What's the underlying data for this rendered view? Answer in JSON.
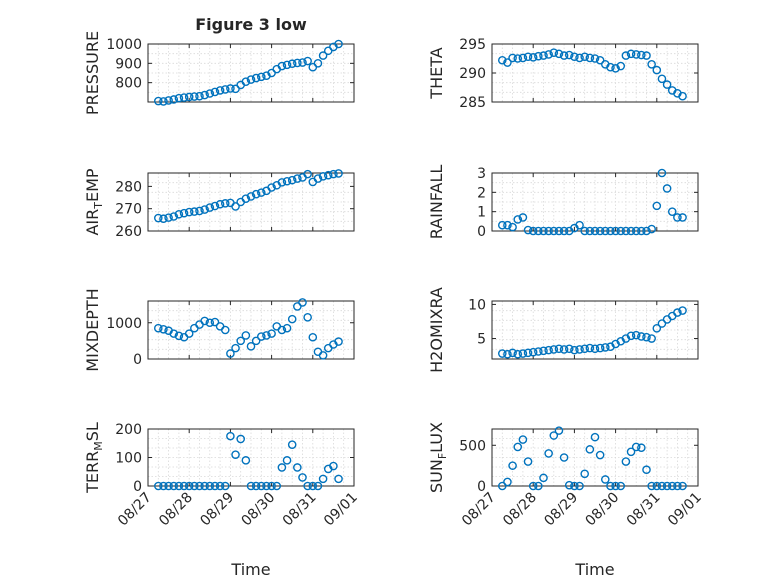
{
  "figure": {
    "title": "Figure 3 low",
    "xlabel": "Time",
    "date_ticks": [
      "08/27",
      "08/28",
      "08/29",
      "08/30",
      "08/31",
      "09/01"
    ],
    "marker": "circle",
    "color": "#0072bd",
    "grid": "minor dotted"
  },
  "chart_data": [
    {
      "type": "scatter",
      "name": "pressure",
      "ylabel": "PRESSURE",
      "ylim": [
        700,
        1000
      ],
      "yticks": [
        800,
        900,
        1000
      ],
      "points": [
        [
          "08/27 06:00",
          705
        ],
        [
          "08/27 09:00",
          703
        ],
        [
          "08/27 12:00",
          708
        ],
        [
          "08/27 15:00",
          713
        ],
        [
          "08/27 18:00",
          720
        ],
        [
          "08/27 21:00",
          723
        ],
        [
          "08/28 00:00",
          726
        ],
        [
          "08/28 03:00",
          728
        ],
        [
          "08/28 06:00",
          730
        ],
        [
          "08/28 09:00",
          736
        ],
        [
          "08/28 12:00",
          744
        ],
        [
          "08/28 15:00",
          752
        ],
        [
          "08/28 18:00",
          760
        ],
        [
          "08/28 21:00",
          765
        ],
        [
          "08/29 00:00",
          770
        ],
        [
          "08/29 03:00",
          768
        ],
        [
          "08/29 06:00",
          788
        ],
        [
          "08/29 09:00",
          805
        ],
        [
          "08/29 12:00",
          816
        ],
        [
          "08/29 15:00",
          824
        ],
        [
          "08/29 18:00",
          830
        ],
        [
          "08/29 21:00",
          836
        ],
        [
          "08/30 00:00",
          850
        ],
        [
          "08/30 03:00",
          870
        ],
        [
          "08/30 06:00",
          886
        ],
        [
          "08/30 09:00",
          892
        ],
        [
          "08/30 12:00",
          898
        ],
        [
          "08/30 15:00",
          902
        ],
        [
          "08/30 18:00",
          904
        ],
        [
          "08/30 21:00",
          912
        ],
        [
          "08/31 00:00",
          880
        ],
        [
          "08/31 03:00",
          900
        ],
        [
          "08/31 06:00",
          940
        ],
        [
          "08/31 09:00",
          965
        ],
        [
          "08/31 12:00",
          985
        ],
        [
          "08/31 15:00",
          1000
        ]
      ]
    },
    {
      "type": "scatter",
      "name": "theta",
      "ylabel": "THETA",
      "ylim": [
        285,
        295
      ],
      "yticks": [
        285,
        290,
        295
      ],
      "points": [
        [
          "08/27 06:00",
          292.2
        ],
        [
          "08/27 09:00",
          291.8
        ],
        [
          "08/27 12:00",
          292.6
        ],
        [
          "08/27 15:00",
          292.5
        ],
        [
          "08/27 18:00",
          292.6
        ],
        [
          "08/27 21:00",
          292.8
        ],
        [
          "08/28 00:00",
          292.7
        ],
        [
          "08/28 03:00",
          292.9
        ],
        [
          "08/28 06:00",
          293.0
        ],
        [
          "08/28 09:00",
          293.2
        ],
        [
          "08/28 12:00",
          293.5
        ],
        [
          "08/28 15:00",
          293.3
        ],
        [
          "08/28 18:00",
          293.0
        ],
        [
          "08/28 21:00",
          293.1
        ],
        [
          "08/29 00:00",
          292.8
        ],
        [
          "08/29 03:00",
          292.6
        ],
        [
          "08/29 06:00",
          292.8
        ],
        [
          "08/29 09:00",
          292.6
        ],
        [
          "08/29 12:00",
          292.5
        ],
        [
          "08/29 15:00",
          292.2
        ],
        [
          "08/29 18:00",
          291.5
        ],
        [
          "08/29 21:00",
          291.0
        ],
        [
          "08/30 00:00",
          290.8
        ],
        [
          "08/30 03:00",
          291.2
        ],
        [
          "08/30 06:00",
          293.0
        ],
        [
          "08/30 09:00",
          293.3
        ],
        [
          "08/30 12:00",
          293.2
        ],
        [
          "08/30 15:00",
          293.1
        ],
        [
          "08/30 18:00",
          293.0
        ],
        [
          "08/30 21:00",
          291.5
        ],
        [
          "08/31 00:00",
          290.5
        ],
        [
          "08/31 03:00",
          289.0
        ],
        [
          "08/31 06:00",
          288.0
        ],
        [
          "08/31 09:00",
          287.0
        ],
        [
          "08/31 12:00",
          286.5
        ],
        [
          "08/31 15:00",
          286.0
        ]
      ]
    },
    {
      "type": "scatter",
      "name": "air-temp",
      "ylabel": "AIR_TEMP",
      "ylim": [
        260,
        286
      ],
      "yticks": [
        260,
        270,
        280
      ],
      "points": [
        [
          "08/27 06:00",
          265.8
        ],
        [
          "08/27 09:00",
          265.5
        ],
        [
          "08/27 12:00",
          266.0
        ],
        [
          "08/27 15:00",
          266.5
        ],
        [
          "08/27 18:00",
          267.5
        ],
        [
          "08/27 21:00",
          268.0
        ],
        [
          "08/28 00:00",
          268.5
        ],
        [
          "08/28 03:00",
          268.7
        ],
        [
          "08/28 06:00",
          269.0
        ],
        [
          "08/28 09:00",
          269.6
        ],
        [
          "08/28 12:00",
          270.5
        ],
        [
          "08/28 15:00",
          271.2
        ],
        [
          "08/28 18:00",
          272.0
        ],
        [
          "08/28 21:00",
          272.4
        ],
        [
          "08/29 00:00",
          272.6
        ],
        [
          "08/29 03:00",
          271.0
        ],
        [
          "08/29 06:00",
          273.0
        ],
        [
          "08/29 09:00",
          274.5
        ],
        [
          "08/29 12:00",
          275.5
        ],
        [
          "08/29 15:00",
          276.5
        ],
        [
          "08/29 18:00",
          277.2
        ],
        [
          "08/29 21:00",
          278.0
        ],
        [
          "08/30 00:00",
          279.5
        ],
        [
          "08/30 03:00",
          280.5
        ],
        [
          "08/30 06:00",
          281.8
        ],
        [
          "08/30 09:00",
          282.3
        ],
        [
          "08/30 12:00",
          282.8
        ],
        [
          "08/30 15:00",
          283.5
        ],
        [
          "08/30 18:00",
          284.0
        ],
        [
          "08/30 21:00",
          285.5
        ],
        [
          "08/31 00:00",
          282.0
        ],
        [
          "08/31 03:00",
          283.5
        ],
        [
          "08/31 06:00",
          284.5
        ],
        [
          "08/31 09:00",
          285.0
        ],
        [
          "08/31 12:00",
          285.5
        ],
        [
          "08/31 15:00",
          285.8
        ]
      ]
    },
    {
      "type": "scatter",
      "name": "rainfall",
      "ylabel": "RAINFALL",
      "ylim": [
        0,
        3
      ],
      "yticks": [
        0,
        1,
        2,
        3
      ],
      "points": [
        [
          "08/27 06:00",
          0.3
        ],
        [
          "08/27 09:00",
          0.3
        ],
        [
          "08/27 12:00",
          0.2
        ],
        [
          "08/27 15:00",
          0.6
        ],
        [
          "08/27 18:00",
          0.7
        ],
        [
          "08/27 21:00",
          0.05
        ],
        [
          "08/28 00:00",
          0
        ],
        [
          "08/28 03:00",
          0
        ],
        [
          "08/28 06:00",
          0
        ],
        [
          "08/28 09:00",
          0
        ],
        [
          "08/28 12:00",
          0
        ],
        [
          "08/28 15:00",
          0
        ],
        [
          "08/28 18:00",
          0
        ],
        [
          "08/28 21:00",
          0
        ],
        [
          "08/29 00:00",
          0.15
        ],
        [
          "08/29 03:00",
          0.3
        ],
        [
          "08/29 06:00",
          0
        ],
        [
          "08/29 09:00",
          0
        ],
        [
          "08/29 12:00",
          0
        ],
        [
          "08/29 15:00",
          0
        ],
        [
          "08/29 18:00",
          0
        ],
        [
          "08/29 21:00",
          0
        ],
        [
          "08/30 00:00",
          0
        ],
        [
          "08/30 03:00",
          0
        ],
        [
          "08/30 06:00",
          0
        ],
        [
          "08/30 09:00",
          0
        ],
        [
          "08/30 12:00",
          0
        ],
        [
          "08/30 15:00",
          0
        ],
        [
          "08/30 18:00",
          0
        ],
        [
          "08/30 21:00",
          0.1
        ],
        [
          "08/31 00:00",
          1.3
        ],
        [
          "08/31 03:00",
          3.0
        ],
        [
          "08/31 06:00",
          2.2
        ],
        [
          "08/31 09:00",
          1.0
        ],
        [
          "08/31 12:00",
          0.7
        ],
        [
          "08/31 15:00",
          0.7
        ]
      ]
    },
    {
      "type": "scatter",
      "name": "mixdepth",
      "ylabel": "MIXDEPTH",
      "ylim": [
        0,
        1600
      ],
      "yticks": [
        0,
        1000
      ],
      "points": [
        [
          "08/27 06:00",
          850
        ],
        [
          "08/27 09:00",
          820
        ],
        [
          "08/27 12:00",
          780
        ],
        [
          "08/27 15:00",
          700
        ],
        [
          "08/27 18:00",
          640
        ],
        [
          "08/27 21:00",
          600
        ],
        [
          "08/28 00:00",
          700
        ],
        [
          "08/28 03:00",
          850
        ],
        [
          "08/28 06:00",
          950
        ],
        [
          "08/28 09:00",
          1050
        ],
        [
          "08/28 12:00",
          1000
        ],
        [
          "08/28 15:00",
          1020
        ],
        [
          "08/28 18:00",
          900
        ],
        [
          "08/28 21:00",
          800
        ],
        [
          "08/29 00:00",
          150
        ],
        [
          "08/29 03:00",
          300
        ],
        [
          "08/29 06:00",
          500
        ],
        [
          "08/29 09:00",
          650
        ],
        [
          "08/29 12:00",
          350
        ],
        [
          "08/29 15:00",
          500
        ],
        [
          "08/29 18:00",
          620
        ],
        [
          "08/29 21:00",
          650
        ],
        [
          "08/30 00:00",
          700
        ],
        [
          "08/30 03:00",
          900
        ],
        [
          "08/30 06:00",
          800
        ],
        [
          "08/30 09:00",
          850
        ],
        [
          "08/30 12:00",
          1100
        ],
        [
          "08/30 15:00",
          1450
        ],
        [
          "08/30 18:00",
          1560
        ],
        [
          "08/30 21:00",
          1150
        ],
        [
          "08/31 00:00",
          600
        ],
        [
          "08/31 03:00",
          200
        ],
        [
          "08/31 06:00",
          100
        ],
        [
          "08/31 09:00",
          300
        ],
        [
          "08/31 12:00",
          400
        ],
        [
          "08/31 15:00",
          480
        ]
      ]
    },
    {
      "type": "scatter",
      "name": "h2omixra",
      "ylabel": "H2OMIXRA",
      "ylim": [
        2,
        10.5
      ],
      "yticks": [
        5,
        10
      ],
      "points": [
        [
          "08/27 06:00",
          2.8
        ],
        [
          "08/27 09:00",
          2.7
        ],
        [
          "08/27 12:00",
          2.9
        ],
        [
          "08/27 15:00",
          2.7
        ],
        [
          "08/27 18:00",
          2.8
        ],
        [
          "08/27 21:00",
          2.9
        ],
        [
          "08/28 00:00",
          3.0
        ],
        [
          "08/28 03:00",
          3.1
        ],
        [
          "08/28 06:00",
          3.2
        ],
        [
          "08/28 09:00",
          3.3
        ],
        [
          "08/28 12:00",
          3.4
        ],
        [
          "08/28 15:00",
          3.5
        ],
        [
          "08/28 18:00",
          3.4
        ],
        [
          "08/28 21:00",
          3.5
        ],
        [
          "08/29 00:00",
          3.3
        ],
        [
          "08/29 03:00",
          3.4
        ],
        [
          "08/29 06:00",
          3.5
        ],
        [
          "08/29 09:00",
          3.6
        ],
        [
          "08/29 12:00",
          3.5
        ],
        [
          "08/29 15:00",
          3.6
        ],
        [
          "08/29 18:00",
          3.7
        ],
        [
          "08/29 21:00",
          3.8
        ],
        [
          "08/30 00:00",
          4.2
        ],
        [
          "08/30 03:00",
          4.6
        ],
        [
          "08/30 06:00",
          5.0
        ],
        [
          "08/30 09:00",
          5.4
        ],
        [
          "08/30 12:00",
          5.5
        ],
        [
          "08/30 15:00",
          5.3
        ],
        [
          "08/30 18:00",
          5.2
        ],
        [
          "08/30 21:00",
          5.0
        ],
        [
          "08/31 00:00",
          6.5
        ],
        [
          "08/31 03:00",
          7.2
        ],
        [
          "08/31 06:00",
          7.8
        ],
        [
          "08/31 09:00",
          8.3
        ],
        [
          "08/31 12:00",
          8.8
        ],
        [
          "08/31 15:00",
          9.1
        ]
      ]
    },
    {
      "type": "scatter",
      "name": "terr-msl",
      "ylabel": "TERR_MSL",
      "ylim": [
        0,
        200
      ],
      "yticks": [
        0,
        100,
        200
      ],
      "points": [
        [
          "08/27 06:00",
          0
        ],
        [
          "08/27 09:00",
          0
        ],
        [
          "08/27 12:00",
          0
        ],
        [
          "08/27 15:00",
          0
        ],
        [
          "08/27 18:00",
          0
        ],
        [
          "08/27 21:00",
          0
        ],
        [
          "08/28 00:00",
          0
        ],
        [
          "08/28 03:00",
          0
        ],
        [
          "08/28 06:00",
          0
        ],
        [
          "08/28 09:00",
          0
        ],
        [
          "08/28 12:00",
          0
        ],
        [
          "08/28 15:00",
          0
        ],
        [
          "08/28 18:00",
          0
        ],
        [
          "08/28 21:00",
          0
        ],
        [
          "08/29 00:00",
          175
        ],
        [
          "08/29 03:00",
          110
        ],
        [
          "08/29 06:00",
          165
        ],
        [
          "08/29 09:00",
          90
        ],
        [
          "08/29 12:00",
          0
        ],
        [
          "08/29 15:00",
          0
        ],
        [
          "08/29 18:00",
          0
        ],
        [
          "08/29 21:00",
          0
        ],
        [
          "08/30 00:00",
          0
        ],
        [
          "08/30 03:00",
          0
        ],
        [
          "08/30 06:00",
          65
        ],
        [
          "08/30 09:00",
          90
        ],
        [
          "08/30 12:00",
          145
        ],
        [
          "08/30 15:00",
          65
        ],
        [
          "08/30 18:00",
          30
        ],
        [
          "08/30 21:00",
          0
        ],
        [
          "08/31 00:00",
          0
        ],
        [
          "08/31 03:00",
          0
        ],
        [
          "08/31 06:00",
          25
        ],
        [
          "08/31 09:00",
          60
        ],
        [
          "08/31 12:00",
          70
        ],
        [
          "08/31 15:00",
          25
        ]
      ]
    },
    {
      "type": "scatter",
      "name": "sun-flux",
      "ylabel": "SUN_FLUX",
      "ylim": [
        0,
        700
      ],
      "yticks": [
        0,
        500
      ],
      "points": [
        [
          "08/27 06:00",
          0
        ],
        [
          "08/27 09:00",
          50
        ],
        [
          "08/27 12:00",
          250
        ],
        [
          "08/27 15:00",
          480
        ],
        [
          "08/27 18:00",
          570
        ],
        [
          "08/27 21:00",
          300
        ],
        [
          "08/28 00:00",
          0
        ],
        [
          "08/28 03:00",
          0
        ],
        [
          "08/28 06:00",
          100
        ],
        [
          "08/28 09:00",
          400
        ],
        [
          "08/28 12:00",
          620
        ],
        [
          "08/28 15:00",
          680
        ],
        [
          "08/28 18:00",
          350
        ],
        [
          "08/28 21:00",
          10
        ],
        [
          "08/29 00:00",
          0
        ],
        [
          "08/29 03:00",
          0
        ],
        [
          "08/29 06:00",
          150
        ],
        [
          "08/29 09:00",
          450
        ],
        [
          "08/29 12:00",
          600
        ],
        [
          "08/29 15:00",
          380
        ],
        [
          "08/29 18:00",
          80
        ],
        [
          "08/29 21:00",
          0
        ],
        [
          "08/30 00:00",
          0
        ],
        [
          "08/30 03:00",
          0
        ],
        [
          "08/30 06:00",
          300
        ],
        [
          "08/30 09:00",
          420
        ],
        [
          "08/30 12:00",
          480
        ],
        [
          "08/30 15:00",
          470
        ],
        [
          "08/30 18:00",
          200
        ],
        [
          "08/30 21:00",
          0
        ],
        [
          "08/31 00:00",
          0
        ],
        [
          "08/31 03:00",
          0
        ],
        [
          "08/31 06:00",
          0
        ],
        [
          "08/31 09:00",
          0
        ],
        [
          "08/31 12:00",
          0
        ],
        [
          "08/31 15:00",
          0
        ]
      ]
    }
  ]
}
